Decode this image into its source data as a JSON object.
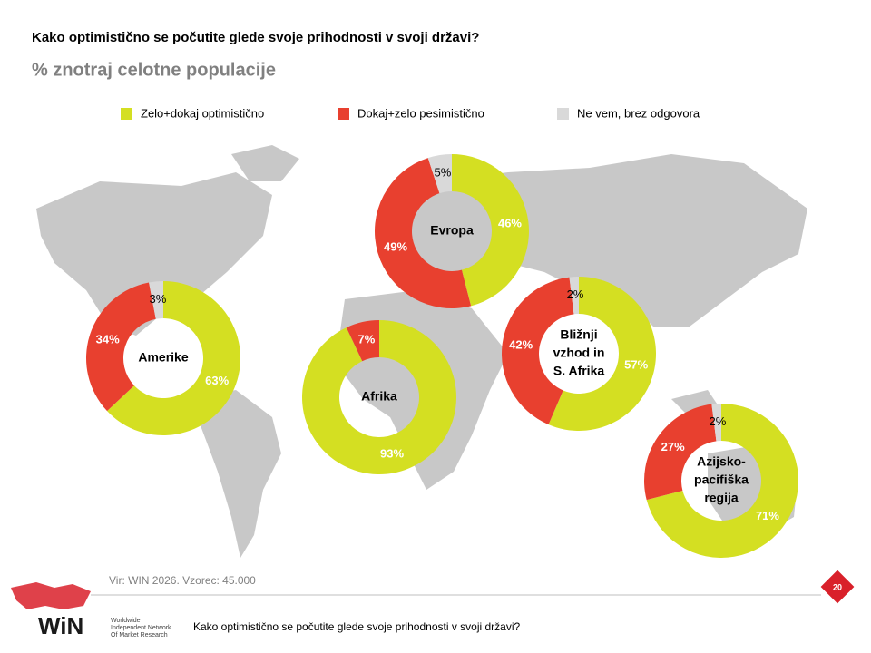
{
  "title": "Kako optimistično se počutite glede svoje prihodnosti v svoji državi?",
  "subtitle": "% znotraj celotne populacije",
  "legend": {
    "labels": [
      "Zelo+dokaj optimistično",
      "Dokaj+zelo pesimistično",
      "Ne vem, brez odgovora"
    ],
    "colors": [
      "#d4df22",
      "#e8402f",
      "#d9d9d9"
    ]
  },
  "chart_data": [
    {
      "type": "donut",
      "title": [
        "Evropa"
      ],
      "values": [
        46,
        49,
        5
      ],
      "value_labels": [
        "46%",
        "49%",
        "5%"
      ]
    },
    {
      "type": "donut",
      "title": [
        "Amerike"
      ],
      "values": [
        63,
        34,
        3
      ],
      "value_labels": [
        "63%",
        "34%",
        "3%"
      ]
    },
    {
      "type": "donut",
      "title": [
        "Afrika"
      ],
      "values": [
        93,
        7
      ],
      "value_labels": [
        "93%",
        "7%"
      ]
    },
    {
      "type": "donut",
      "title": [
        "Bližnji",
        "vzhod in",
        "S. Afrika"
      ],
      "values": [
        57,
        42,
        2
      ],
      "value_labels": [
        "57%",
        "42%",
        "2%"
      ]
    },
    {
      "type": "donut",
      "title": [
        "Azijsko-",
        "pacifiška",
        "regija"
      ],
      "values": [
        71,
        27,
        2
      ],
      "value_labels": [
        "71%",
        "27%",
        "2%"
      ]
    }
  ],
  "source": "Vir: WIN 2026.  Vzorec: 45.000",
  "footer": {
    "question": "Kako optimistično se počutite glede svoje prihodnosti v svoji državi?",
    "page": "20",
    "logo": "WiN",
    "logo_lines": [
      "Worldwide",
      "Independent Network",
      "Of Market Research"
    ]
  }
}
